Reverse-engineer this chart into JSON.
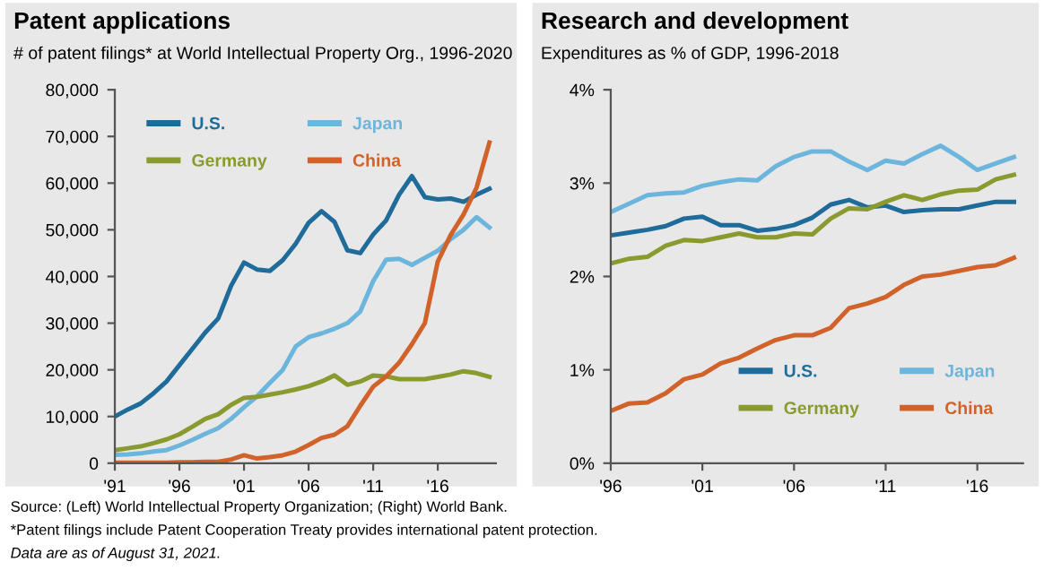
{
  "chart_data": [
    {
      "type": "line",
      "title": "Patent applications",
      "subtitle": "# of patent filings* at World Intellectual Property Org., 1996-2020",
      "x": [
        1991,
        1992,
        1993,
        1994,
        1995,
        1996,
        1997,
        1998,
        1999,
        2000,
        2001,
        2002,
        2003,
        2004,
        2005,
        2006,
        2007,
        2008,
        2009,
        2010,
        2011,
        2012,
        2013,
        2014,
        2015,
        2016,
        2017,
        2018,
        2019,
        2020
      ],
      "series": [
        {
          "name": "U.S.",
          "color": "#1f6b9a",
          "values": [
            10000,
            11500,
            12800,
            15000,
            17500,
            21000,
            24500,
            28000,
            31000,
            38000,
            43000,
            41500,
            41200,
            43500,
            47000,
            51500,
            54000,
            51700,
            45600,
            45000,
            49000,
            52000,
            57500,
            61500,
            57000,
            56500,
            56700,
            56000,
            57500,
            58800
          ]
        },
        {
          "name": "Japan",
          "color": "#6cb5dc",
          "values": [
            1800,
            1900,
            2100,
            2500,
            2800,
            3800,
            5000,
            6300,
            7500,
            9500,
            12000,
            14300,
            17200,
            20000,
            25000,
            27000,
            27800,
            28800,
            30000,
            32500,
            39000,
            43600,
            43800,
            42500,
            44000,
            45500,
            48000,
            50000,
            52700,
            50500
          ]
        },
        {
          "name": "Germany",
          "color": "#8a9a2e",
          "values": [
            2800,
            3200,
            3600,
            4300,
            5100,
            6200,
            7800,
            9500,
            10500,
            12500,
            14000,
            14200,
            14700,
            15200,
            15800,
            16500,
            17500,
            18800,
            16800,
            17500,
            18800,
            18600,
            18000,
            18000,
            18000,
            18500,
            19000,
            19700,
            19300,
            18500
          ]
        },
        {
          "name": "China",
          "color": "#d0622a",
          "values": [
            100,
            100,
            100,
            100,
            100,
            200,
            200,
            300,
            300,
            800,
            1700,
            1000,
            1300,
            1700,
            2500,
            3900,
            5400,
            6100,
            7900,
            12300,
            16400,
            18600,
            21500,
            25500,
            30000,
            43200,
            48900,
            53300,
            59000,
            68700
          ]
        }
      ],
      "xlim": [
        1991,
        2020.5
      ],
      "xticks": [
        {
          "value": 1991,
          "label": "'91"
        },
        {
          "value": 1996,
          "label": "'96"
        },
        {
          "value": 2001,
          "label": "'01"
        },
        {
          "value": 2006,
          "label": "'06"
        },
        {
          "value": 2011,
          "label": "'11"
        },
        {
          "value": 2016,
          "label": "'16"
        }
      ],
      "ylim": [
        0,
        80000
      ],
      "yticks": [
        {
          "value": 0,
          "label": "0"
        },
        {
          "value": 10000,
          "label": "10,000"
        },
        {
          "value": 20000,
          "label": "20,000"
        },
        {
          "value": 30000,
          "label": "30,000"
        },
        {
          "value": 40000,
          "label": "40,000"
        },
        {
          "value": 50000,
          "label": "50,000"
        },
        {
          "value": 60000,
          "label": "60,000"
        },
        {
          "value": 70000,
          "label": "70,000"
        },
        {
          "value": 80000,
          "label": "80,000"
        }
      ],
      "grid": false,
      "legend": "top left",
      "annotations": [
        "Source: (Left) World Intellectual Property Organization; (Right) World Bank.",
        "*Patent filings include Patent Cooperation Treaty provides international patent protection.",
        "Data are as of August 31, 2021."
      ]
    },
    {
      "type": "line",
      "title": "Research and development",
      "subtitle": "Expenditures as % of GDP, 1996-2018",
      "x": [
        1996,
        1997,
        1998,
        1999,
        2000,
        2001,
        2002,
        2003,
        2004,
        2005,
        2006,
        2007,
        2008,
        2009,
        2010,
        2011,
        2012,
        2013,
        2014,
        2015,
        2016,
        2017,
        2018
      ],
      "series": [
        {
          "name": "U.S.",
          "color": "#1f6b9a",
          "values": [
            2.44,
            2.47,
            2.5,
            2.54,
            2.62,
            2.64,
            2.55,
            2.55,
            2.49,
            2.51,
            2.55,
            2.63,
            2.77,
            2.82,
            2.74,
            2.76,
            2.69,
            2.71,
            2.72,
            2.72,
            2.76,
            2.8,
            2.8
          ]
        },
        {
          "name": "Japan",
          "color": "#6cb5dc",
          "values": [
            2.69,
            2.78,
            2.87,
            2.89,
            2.9,
            2.97,
            3.01,
            3.04,
            3.03,
            3.18,
            3.28,
            3.34,
            3.34,
            3.23,
            3.14,
            3.24,
            3.21,
            3.31,
            3.4,
            3.28,
            3.14,
            3.21,
            3.28
          ]
        },
        {
          "name": "Germany",
          "color": "#8a9a2e",
          "values": [
            2.14,
            2.19,
            2.21,
            2.33,
            2.39,
            2.38,
            2.42,
            2.46,
            2.42,
            2.42,
            2.46,
            2.45,
            2.62,
            2.73,
            2.72,
            2.8,
            2.87,
            2.82,
            2.88,
            2.92,
            2.93,
            3.04,
            3.09
          ]
        },
        {
          "name": "China",
          "color": "#d0622a",
          "values": [
            0.56,
            0.64,
            0.65,
            0.75,
            0.9,
            0.95,
            1.07,
            1.13,
            1.23,
            1.32,
            1.37,
            1.37,
            1.45,
            1.66,
            1.71,
            1.78,
            1.91,
            2.0,
            2.02,
            2.06,
            2.1,
            2.12,
            2.2
          ]
        }
      ],
      "xlim": [
        1996,
        2018.5
      ],
      "xticks": [
        {
          "value": 1996,
          "label": "'96"
        },
        {
          "value": 2001,
          "label": "'01"
        },
        {
          "value": 2006,
          "label": "'06"
        },
        {
          "value": 2011,
          "label": "'11"
        },
        {
          "value": 2016,
          "label": "'16"
        }
      ],
      "ylim": [
        0,
        4
      ],
      "yticks": [
        {
          "value": 0,
          "label": "0%"
        },
        {
          "value": 1,
          "label": "1%"
        },
        {
          "value": 2,
          "label": "2%"
        },
        {
          "value": 3,
          "label": "3%"
        },
        {
          "value": 4,
          "label": "4%"
        }
      ],
      "grid": false,
      "legend": "bottom right"
    }
  ]
}
